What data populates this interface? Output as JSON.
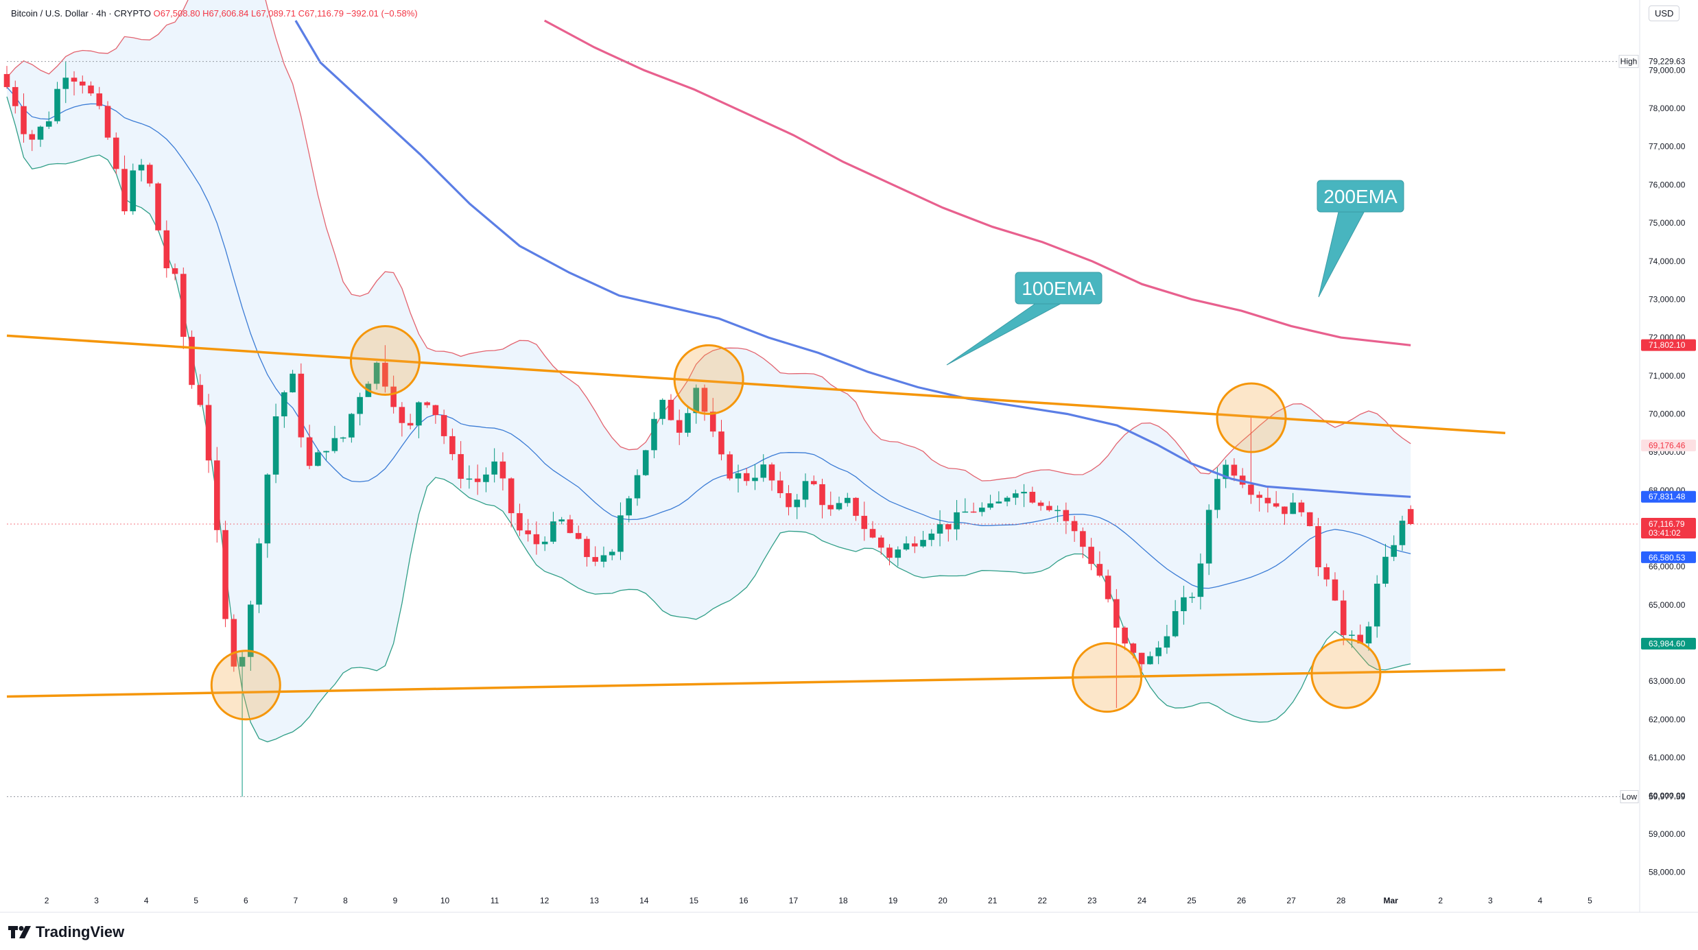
{
  "header": {
    "symbol": "Bitcoin / U.S. Dollar · 4h · CRYPTO",
    "ohlc": "O67,508.80 H67,606.84 L67,089.71 C67,116.79 −392.01 (−0.58%)"
  },
  "currency_button": "USD",
  "branding": "TradingView",
  "colors": {
    "up": "#089981",
    "down": "#f23645",
    "ema100": "#5b7ee5",
    "ema200": "#e8608e",
    "trendline": "#f5960a",
    "bb_upper": "#e2636f",
    "bb_lower": "#2f9e87",
    "bb_basis": "#3a7bd5",
    "bb_fill": "#eaf3fd",
    "callout": "#48b5bf"
  },
  "price_labels": {
    "high_label": "High",
    "high_value": "79,229.63",
    "low_label": "Low",
    "low_value": "59,977.59",
    "ema200": "71,802.10",
    "bb_upper": "69,176.46",
    "ema100": "67,831.48",
    "last": "67,116.79",
    "countdown": "03:41:02",
    "bb_basis": "66,580.53",
    "bb_lower": "63,984.60"
  },
  "annotations": {
    "ema100": "100EMA",
    "ema200": "200EMA"
  },
  "chart_data": {
    "type": "candlestick",
    "title": "Bitcoin / U.S. Dollar · 4h · CRYPTO",
    "y_ticks": [
      58000,
      59000,
      60000,
      61000,
      62000,
      63000,
      64000,
      65000,
      66000,
      67000,
      68000,
      69000,
      70000,
      71000,
      72000,
      73000,
      74000,
      75000,
      76000,
      77000,
      78000,
      79000
    ],
    "y_tick_labels": [
      "58,000.00",
      "59,000.00",
      "60,000.00",
      "61,000.00",
      "62,000.00",
      "63,000.00",
      "64,000.00",
      "65,000.00",
      "66,000.00",
      "67,000.00",
      "68,000.00",
      "69,000.00",
      "70,000.00",
      "71,000.00",
      "72,000.00",
      "73,000.00",
      "74,000.00",
      "75,000.00",
      "76,000.00",
      "77,000.00",
      "78,000.00",
      "79,000.00"
    ],
    "ylim": [
      57400,
      80300
    ],
    "x_ticks": [
      "2",
      "3",
      "4",
      "5",
      "6",
      "7",
      "8",
      "9",
      "10",
      "11",
      "12",
      "13",
      "14",
      "15",
      "16",
      "17",
      "18",
      "19",
      "20",
      "21",
      "22",
      "23",
      "24",
      "25",
      "26",
      "27",
      "28",
      "Mar",
      "2",
      "3",
      "4",
      "5"
    ],
    "x_tick_pos": [
      1,
      2,
      3,
      4,
      5,
      6,
      7,
      8,
      9,
      10,
      11,
      12,
      13,
      14,
      15,
      16,
      17,
      18,
      19,
      20,
      21,
      22,
      23,
      24,
      25,
      26,
      27,
      28,
      29,
      30,
      31,
      32
    ],
    "xlim": [
      0.2,
      33.0
    ],
    "candles_count": 168,
    "anchors": [
      [
        0.2,
        78900
      ],
      [
        0.5,
        78300
      ],
      [
        0.8,
        77100
      ],
      [
        1.2,
        77700
      ],
      [
        1.5,
        79000
      ],
      [
        1.9,
        78700
      ],
      [
        2.2,
        78000
      ],
      [
        2.5,
        76800
      ],
      [
        2.7,
        75300
      ],
      [
        3.0,
        76700
      ],
      [
        3.3,
        75800
      ],
      [
        3.5,
        74000
      ],
      [
        3.8,
        73400
      ],
      [
        4.0,
        71000
      ],
      [
        4.3,
        70200
      ],
      [
        4.5,
        68000
      ],
      [
        4.8,
        64000
      ],
      [
        5.0,
        63300
      ],
      [
        5.2,
        64200
      ],
      [
        5.5,
        67500
      ],
      [
        5.8,
        70200
      ],
      [
        6.1,
        71000
      ],
      [
        6.4,
        68500
      ],
      [
        6.8,
        69200
      ],
      [
        7.1,
        69300
      ],
      [
        7.4,
        70400
      ],
      [
        7.8,
        71300
      ],
      [
        8.1,
        70500
      ],
      [
        8.4,
        69300
      ],
      [
        8.7,
        70600
      ],
      [
        9.0,
        70000
      ],
      [
        9.4,
        68500
      ],
      [
        9.8,
        68200
      ],
      [
        10.2,
        68700
      ],
      [
        10.6,
        67000
      ],
      [
        11.0,
        66600
      ],
      [
        11.5,
        67200
      ],
      [
        12.0,
        66300
      ],
      [
        12.5,
        66100
      ],
      [
        12.7,
        67400
      ],
      [
        13.1,
        68700
      ],
      [
        13.5,
        70300
      ],
      [
        13.9,
        69600
      ],
      [
        14.2,
        70800
      ],
      [
        14.5,
        69600
      ],
      [
        14.8,
        68500
      ],
      [
        15.2,
        68300
      ],
      [
        15.6,
        68600
      ],
      [
        16.0,
        67500
      ],
      [
        16.5,
        68300
      ],
      [
        16.9,
        67400
      ],
      [
        17.3,
        67700
      ],
      [
        17.7,
        66800
      ],
      [
        18.1,
        66300
      ],
      [
        18.5,
        66600
      ],
      [
        18.9,
        67000
      ],
      [
        19.3,
        67100
      ],
      [
        19.7,
        67500
      ],
      [
        20.2,
        67500
      ],
      [
        20.6,
        68100
      ],
      [
        21.0,
        67800
      ],
      [
        21.5,
        67500
      ],
      [
        22.0,
        66500
      ],
      [
        22.4,
        65600
      ],
      [
        22.7,
        64100
      ],
      [
        23.1,
        63500
      ],
      [
        23.4,
        63600
      ],
      [
        23.8,
        64700
      ],
      [
        24.3,
        65500
      ],
      [
        24.6,
        68300
      ],
      [
        24.9,
        68700
      ],
      [
        25.4,
        68000
      ],
      [
        26.0,
        67500
      ],
      [
        26.4,
        67600
      ],
      [
        26.7,
        66100
      ],
      [
        27.0,
        65600
      ],
      [
        27.2,
        64200
      ],
      [
        27.6,
        63900
      ],
      [
        27.9,
        65500
      ],
      [
        28.2,
        66600
      ],
      [
        28.4,
        67100
      ]
    ],
    "ema100_pts": [
      [
        6.0,
        80300
      ],
      [
        6.5,
        79200
      ],
      [
        7.5,
        78000
      ],
      [
        8.5,
        76800
      ],
      [
        9.5,
        75500
      ],
      [
        10.5,
        74400
      ],
      [
        11.5,
        73700
      ],
      [
        12.5,
        73100
      ],
      [
        13.5,
        72800
      ],
      [
        14.5,
        72500
      ],
      [
        15.5,
        72000
      ],
      [
        16.5,
        71600
      ],
      [
        17.5,
        71100
      ],
      [
        18.5,
        70700
      ],
      [
        19.5,
        70400
      ],
      [
        20.5,
        70200
      ],
      [
        21.5,
        70000
      ],
      [
        22.5,
        69700
      ],
      [
        23.3,
        69200
      ],
      [
        24.0,
        68700
      ],
      [
        24.8,
        68300
      ],
      [
        25.5,
        68100
      ],
      [
        26.5,
        68000
      ],
      [
        27.5,
        67900
      ],
      [
        28.4,
        67830
      ]
    ],
    "ema200_pts": [
      [
        11.0,
        80300
      ],
      [
        12.0,
        79600
      ],
      [
        13.0,
        79000
      ],
      [
        14.0,
        78500
      ],
      [
        15.0,
        77900
      ],
      [
        16.0,
        77300
      ],
      [
        17.0,
        76600
      ],
      [
        18.0,
        76000
      ],
      [
        19.0,
        75400
      ],
      [
        20.0,
        74900
      ],
      [
        21.0,
        74500
      ],
      [
        22.0,
        74000
      ],
      [
        23.0,
        73400
      ],
      [
        24.0,
        73000
      ],
      [
        25.0,
        72700
      ],
      [
        26.0,
        72300
      ],
      [
        27.0,
        72000
      ],
      [
        28.4,
        71800
      ]
    ],
    "trendlines": [
      {
        "from": [
          0.2,
          72050
        ],
        "to": [
          30.3,
          69500
        ]
      },
      {
        "from": [
          0.2,
          62600
        ],
        "to": [
          30.3,
          63300
        ]
      }
    ],
    "touch_points": [
      [
        5.0,
        62900
      ],
      [
        7.8,
        71400
      ],
      [
        14.3,
        70900
      ],
      [
        22.3,
        63100
      ],
      [
        25.2,
        69900
      ],
      [
        27.1,
        63200
      ]
    ]
  }
}
